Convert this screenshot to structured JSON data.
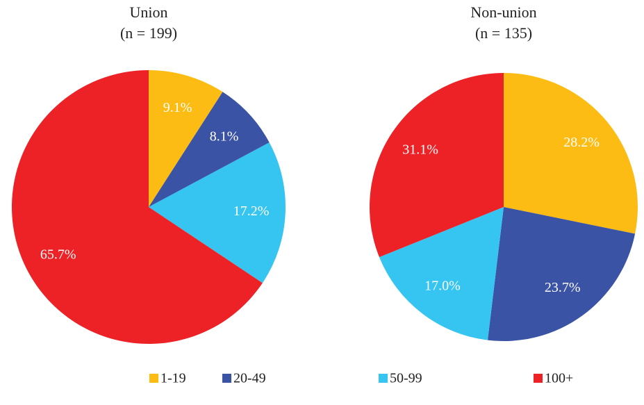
{
  "chart_data": [
    {
      "type": "pie",
      "title": "Union",
      "subtitle": "(n = 199)",
      "values": [
        9.1,
        8.1,
        17.2,
        65.7
      ],
      "value_labels": [
        "9.1%",
        "8.1%",
        "17.2%",
        "65.7%"
      ]
    },
    {
      "type": "pie",
      "title": "Non-union",
      "subtitle": "(n = 135)",
      "values": [
        28.2,
        23.7,
        17.0,
        31.1
      ],
      "value_labels": [
        "28.2%",
        "23.7%",
        "17.0%",
        "31.1%"
      ]
    }
  ],
  "legend": {
    "labels": [
      "1-19",
      "20-49",
      "50-99",
      "100+"
    ],
    "colors": [
      "#fcbc13",
      "#3a53a4",
      "#36c5f0",
      "#ec2227"
    ]
  }
}
